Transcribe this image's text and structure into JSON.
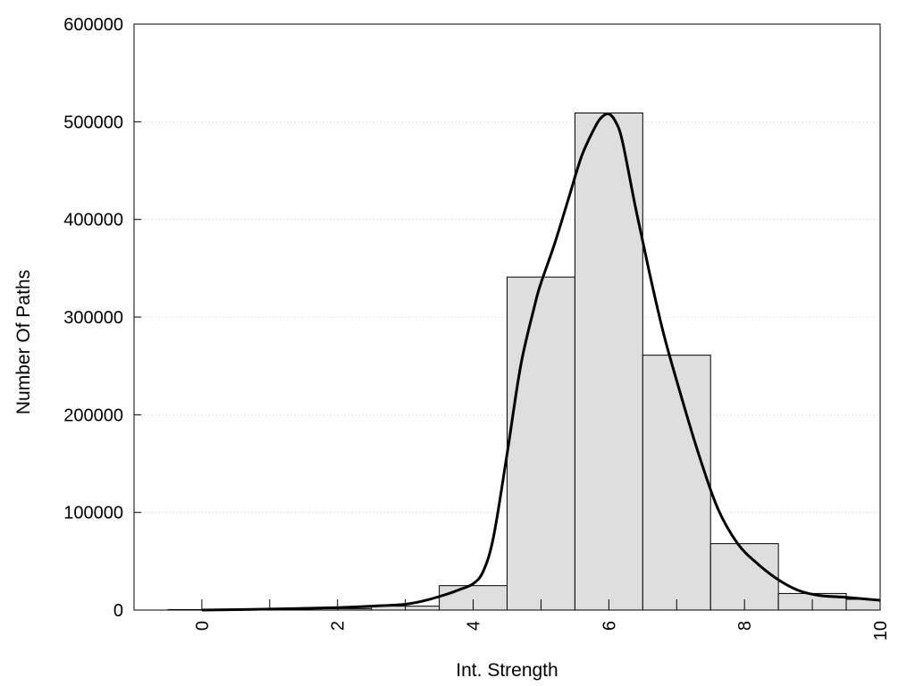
{
  "chart_data": {
    "type": "bar",
    "xlabel": "Int. Strength",
    "ylabel": "Number Of Paths",
    "xlim": [
      -1,
      10
    ],
    "ylim": [
      0,
      600000
    ],
    "x_ticks": [
      0,
      2,
      4,
      6,
      8,
      10
    ],
    "y_ticks": [
      0,
      100000,
      200000,
      300000,
      400000,
      500000,
      600000
    ],
    "grid": {
      "y": true,
      "x": false
    },
    "bar_width": 1,
    "bars": {
      "x": [
        0,
        1,
        2,
        3,
        4,
        5,
        6,
        7,
        8,
        9,
        10
      ],
      "values": [
        500,
        800,
        1500,
        4000,
        25000,
        341000,
        509000,
        261000,
        68000,
        17000,
        11000
      ]
    },
    "curve": {
      "x": [
        0,
        1,
        2,
        2.5,
        3,
        3.3,
        3.6,
        3.8,
        4,
        4.15,
        4.3,
        4.5,
        4.7,
        4.9,
        5,
        5.2,
        5.4,
        5.6,
        5.8,
        5.9,
        6,
        6.1,
        6.2,
        6.4,
        6.6,
        6.8,
        7,
        7.3,
        7.6,
        7.9,
        8.2,
        8.5,
        8.8,
        9.1,
        9.5,
        10
      ],
      "y": [
        0,
        1000,
        2500,
        4000,
        6000,
        10000,
        16000,
        21000,
        27000,
        40000,
        75000,
        160000,
        250000,
        310000,
        335000,
        375000,
        420000,
        465000,
        495000,
        505000,
        508000,
        500000,
        480000,
        410000,
        345000,
        285000,
        235000,
        165000,
        105000,
        68000,
        47000,
        31000,
        20000,
        15000,
        13000,
        10000
      ]
    },
    "bar_fill": "#dedede",
    "bar_stroke": "#000000",
    "curve_color": "#000000",
    "grid_color": "#cccccc"
  }
}
